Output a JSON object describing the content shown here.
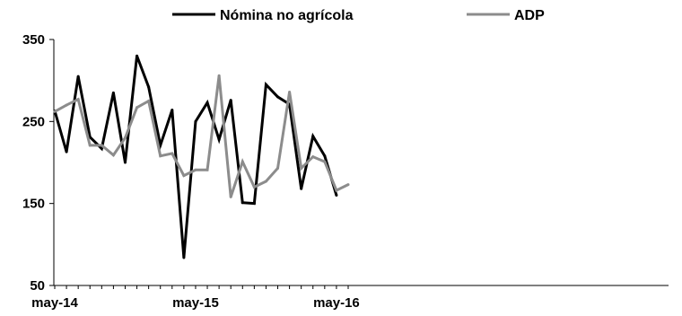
{
  "chart_data": {
    "type": "line",
    "x": [
      "may-14",
      "jun-14",
      "jul-14",
      "ago-14",
      "sep-14",
      "oct-14",
      "nov-14",
      "dic-14",
      "ene-15",
      "feb-15",
      "mar-15",
      "abr-15",
      "may-15",
      "jun-15",
      "jul-15",
      "ago-15",
      "sep-15",
      "oct-15",
      "nov-15",
      "dic-15",
      "ene-16",
      "feb-16",
      "mar-16",
      "abr-16",
      "may-16",
      "jun-16"
    ],
    "x_tick_labels": [
      "may-14",
      "may-15",
      "may-16"
    ],
    "x_tick_values": [
      "may-14",
      "may-15",
      "may-16"
    ],
    "y_ticks": [
      50,
      150,
      250,
      350
    ],
    "ylim": [
      50,
      350
    ],
    "grid": false,
    "legend_position": "top",
    "title": "",
    "xlabel": "",
    "ylabel": "",
    "series": [
      {
        "name": "Nómina no agrícola",
        "color": "#000000",
        "values": [
          263,
          213,
          305,
          231,
          217,
          285,
          200,
          330,
          292,
          221,
          264,
          84,
          250,
          273,
          228,
          276,
          151,
          150,
          295,
          280,
          271,
          168,
          232,
          208,
          160,
          null
        ]
      },
      {
        "name": "ADP",
        "color": "#8c8c8c",
        "values": [
          262,
          270,
          277,
          221,
          221,
          209,
          230,
          267,
          275,
          208,
          211,
          184,
          191,
          191,
          306,
          158,
          201,
          170,
          177,
          193,
          286,
          193,
          207,
          201,
          166,
          173
        ]
      }
    ]
  }
}
